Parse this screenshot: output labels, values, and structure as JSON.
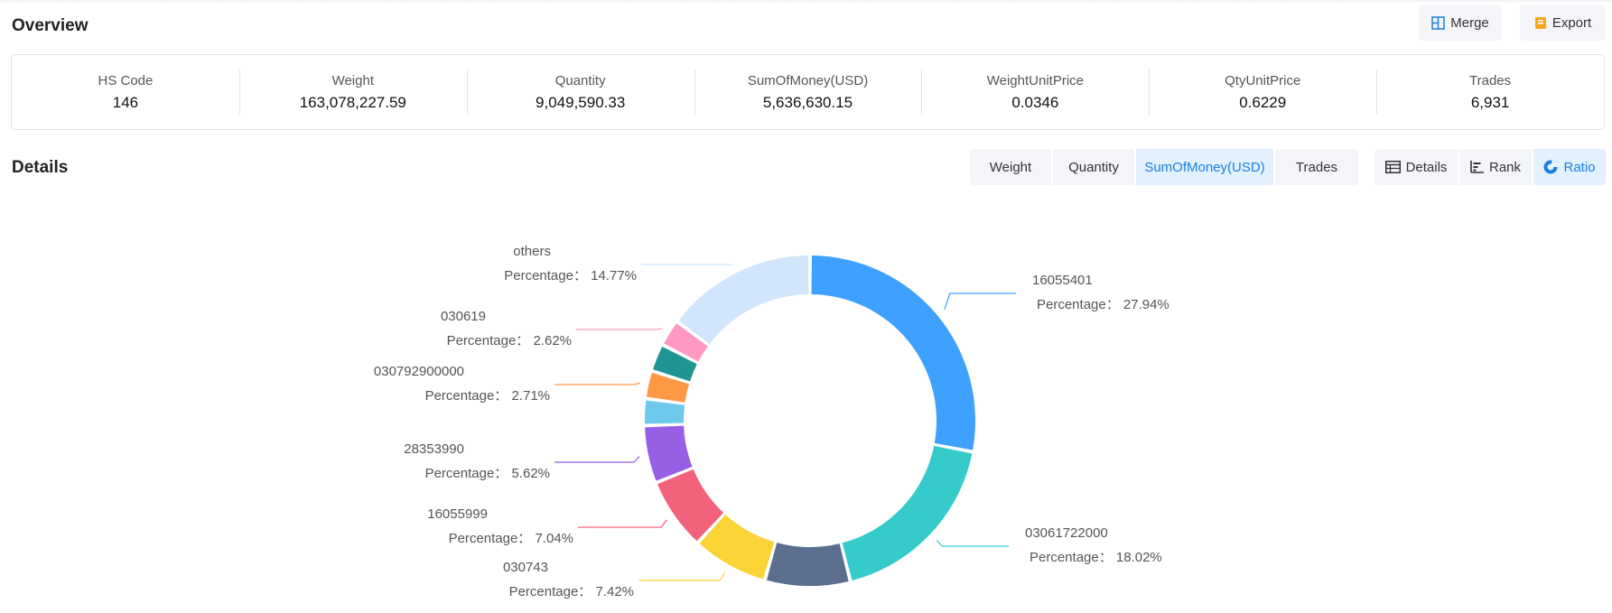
{
  "header": {
    "overview_title": "Overview",
    "merge_label": "Merge",
    "export_label": "Export"
  },
  "summary": [
    {
      "label": "HS Code",
      "value": "146"
    },
    {
      "label": "Weight",
      "value": "163,078,227.59"
    },
    {
      "label": "Quantity",
      "value": "9,049,590.33"
    },
    {
      "label": "SumOfMoney(USD)",
      "value": "5,636,630.15"
    },
    {
      "label": "WeightUnitPrice",
      "value": "0.0346"
    },
    {
      "label": "QtyUnitPrice",
      "value": "0.6229"
    },
    {
      "label": "Trades",
      "value": "6,931"
    }
  ],
  "details": {
    "title": "Details",
    "metric_tabs": [
      {
        "label": "Weight",
        "active": false
      },
      {
        "label": "Quantity",
        "active": false
      },
      {
        "label": "SumOfMoney(USD)",
        "active": true
      },
      {
        "label": "Trades",
        "active": false
      }
    ],
    "view_tabs": [
      {
        "label": "Details",
        "icon": "table-icon",
        "active": false
      },
      {
        "label": "Rank",
        "icon": "bar-chart-icon",
        "active": false
      },
      {
        "label": "Ratio",
        "icon": "donut-chart-icon",
        "active": true
      }
    ]
  },
  "colors": {
    "accent": "#1a7fe0",
    "active_bg": "#e3f0fd",
    "button_bg": "#f3f5f8",
    "border": "#dfe3e8"
  },
  "chart_data": {
    "type": "pie",
    "variant": "donut",
    "percent_prefix": "Percentage：",
    "slices": [
      {
        "name": "16055401",
        "percent": 27.94,
        "color": "#3ea1ff",
        "labeled": true
      },
      {
        "name": "03061722000",
        "percent": 18.02,
        "color": "#36cbcb",
        "labeled": true
      },
      {
        "name": "",
        "percent": 8.3,
        "color": "#5b6e8e",
        "labeled": false
      },
      {
        "name": "030743",
        "percent": 7.42,
        "color": "#fad337",
        "labeled": true
      },
      {
        "name": "16055999",
        "percent": 7.04,
        "color": "#f2637b",
        "labeled": true
      },
      {
        "name": "28353990",
        "percent": 5.62,
        "color": "#975fe5",
        "labeled": true
      },
      {
        "name": "",
        "percent": 2.6,
        "color": "#6dc8ec",
        "labeled": false
      },
      {
        "name": "030792900000",
        "percent": 2.71,
        "color": "#ff9845",
        "labeled": true
      },
      {
        "name": "",
        "percent": 2.7,
        "color": "#1e9493",
        "labeled": false
      },
      {
        "name": "030619",
        "percent": 2.62,
        "color": "#ff99c3",
        "labeled": true
      },
      {
        "name": "others",
        "percent": 14.77,
        "color": "#d1e6fc",
        "labeled": true
      }
    ]
  }
}
